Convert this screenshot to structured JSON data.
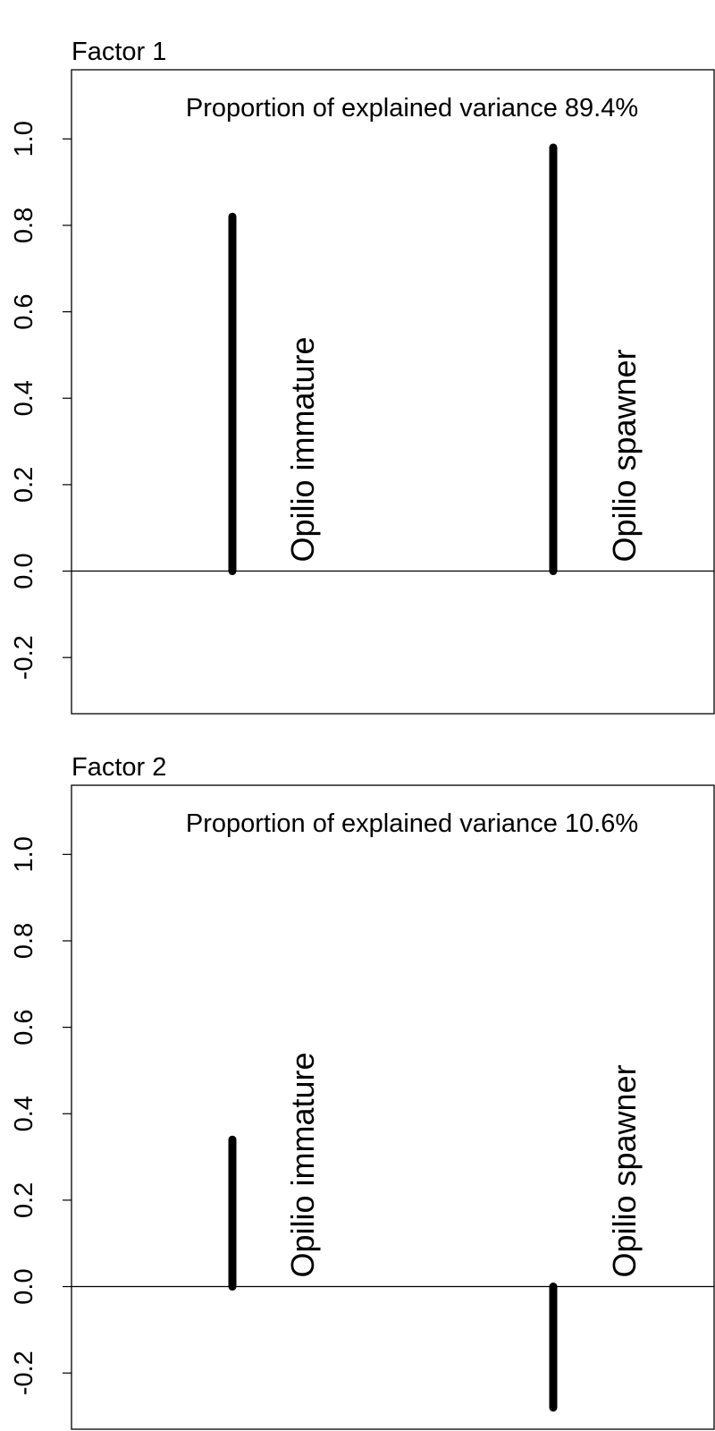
{
  "chart_data": [
    {
      "type": "bar",
      "title": "Factor 1",
      "annotation": "Proportion of explained variance 89.4%",
      "categories": [
        "Opilio immature",
        "Opilio spawner"
      ],
      "values": [
        0.82,
        0.98
      ],
      "ylim": [
        -0.33,
        1.16
      ],
      "yticks": [
        -0.2,
        0.0,
        0.2,
        0.4,
        0.6,
        0.8,
        1.0
      ],
      "ytick_labels": [
        "-0.2",
        "0.0",
        "0.2",
        "0.4",
        "0.6",
        "0.8",
        "1.0"
      ],
      "grid": false,
      "zero_line": true
    },
    {
      "type": "bar",
      "title": "Factor 2",
      "annotation": "Proportion of explained variance 10.6%",
      "categories": [
        "Opilio immature",
        "Opilio spawner"
      ],
      "values": [
        0.34,
        -0.28
      ],
      "ylim": [
        -0.33,
        1.16
      ],
      "yticks": [
        -0.2,
        0.0,
        0.2,
        0.4,
        0.6,
        0.8,
        1.0
      ],
      "ytick_labels": [
        "-0.2",
        "0.0",
        "0.2",
        "0.4",
        "0.6",
        "0.8",
        "1.0"
      ],
      "grid": false,
      "zero_line": true
    }
  ]
}
